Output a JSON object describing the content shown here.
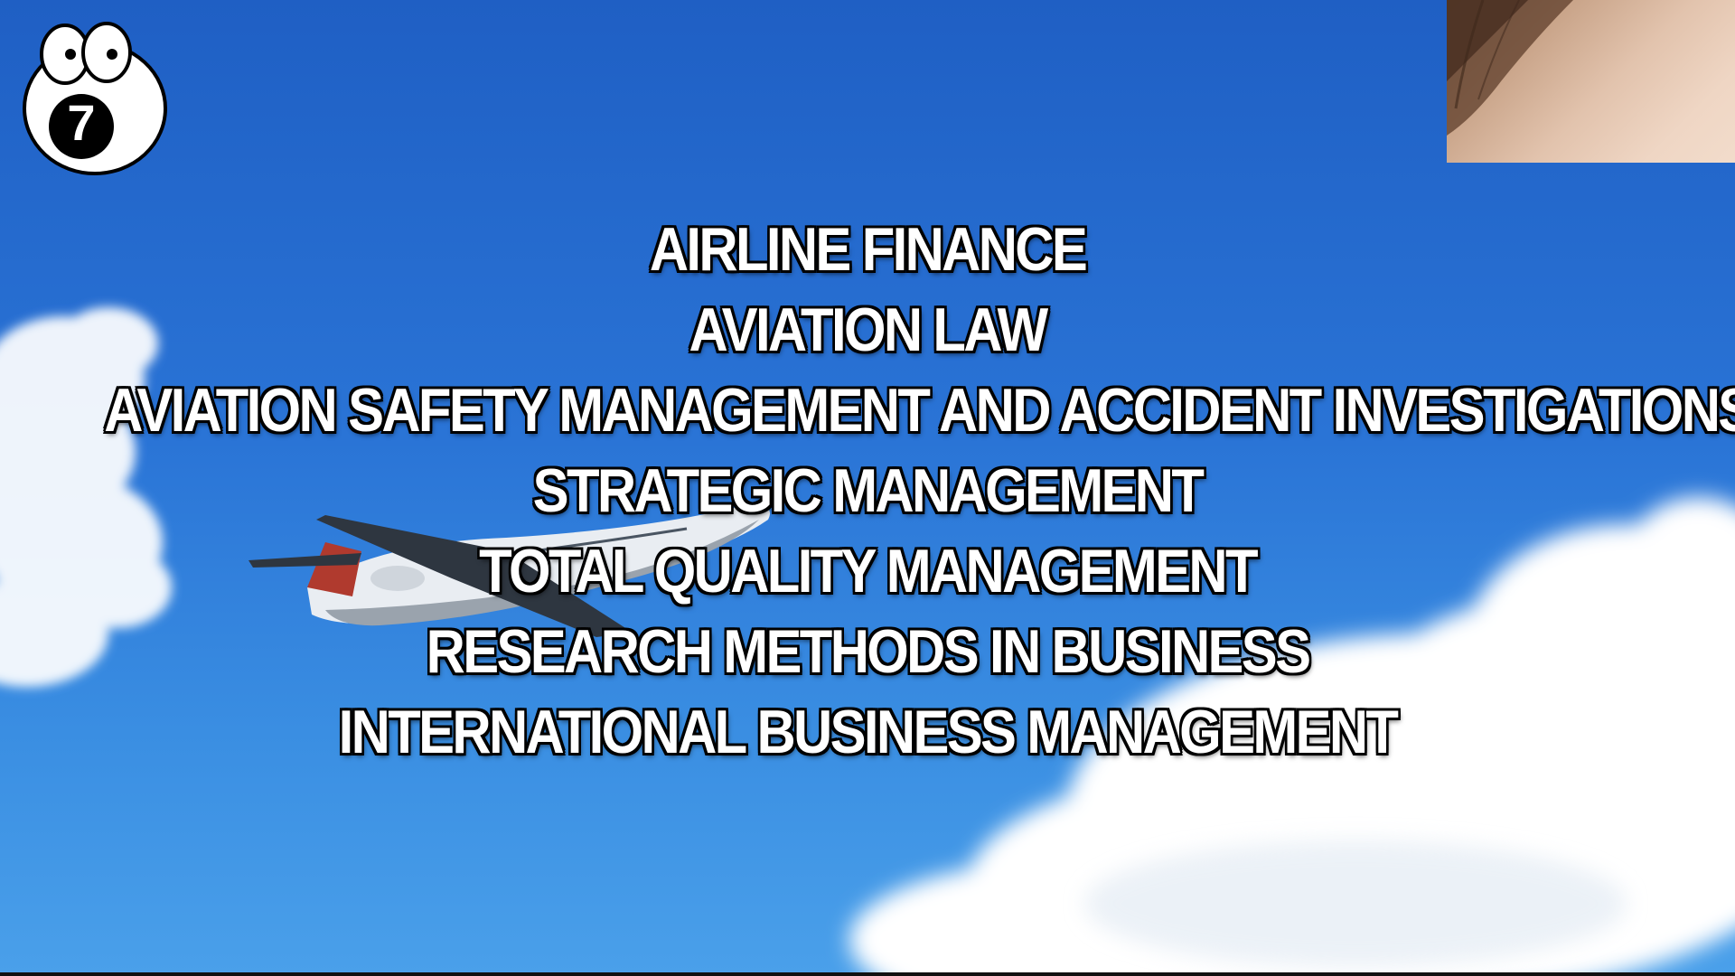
{
  "logo": {
    "badge_number": "7"
  },
  "courses": [
    "AIRLINE FINANCE",
    "AVIATION LAW",
    "AVIATION SAFETY MANAGEMENT AND ACCIDENT INVESTIGATIONS",
    "STRATEGIC MANAGEMENT",
    "TOTAL QUALITY MANAGEMENT",
    "RESEARCH METHODS IN BUSINESS",
    "INTERNATIONAL BUSINESS MANAGEMENT"
  ],
  "colors": {
    "sky_top": "#1f5fc4",
    "sky_bottom": "#4aa0ea",
    "cloud": "#ffffff",
    "text": "#ffffff",
    "outline": "#000000"
  }
}
